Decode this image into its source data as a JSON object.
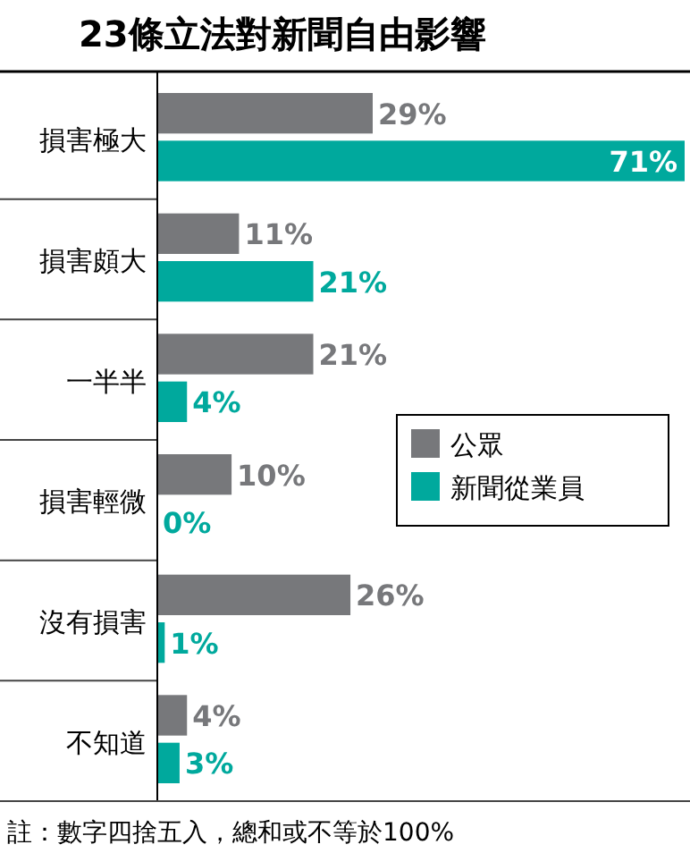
{
  "chart_data": {
    "type": "bar",
    "orientation": "horizontal",
    "title": "23條立法對新聞自由影響",
    "categories": [
      "損害極大",
      "損害頗大",
      "一半半",
      "損害輕微",
      "沒有損害",
      "不知道"
    ],
    "series": [
      {
        "name": "公眾",
        "color": "#77787b",
        "values": [
          29,
          11,
          21,
          10,
          26,
          4
        ],
        "value_labels": [
          "29%",
          "11%",
          "21%",
          "10%",
          "26%",
          "4%"
        ]
      },
      {
        "name": "新聞從業員",
        "color": "#00a99d",
        "values": [
          71,
          21,
          4,
          0,
          1,
          3
        ],
        "value_labels": [
          "71%",
          "21%",
          "4%",
          "0%",
          "1%",
          "3%"
        ]
      }
    ],
    "legend": "right",
    "annotations": [
      "註：數字四捨五入，總和或不等於100%"
    ]
  }
}
